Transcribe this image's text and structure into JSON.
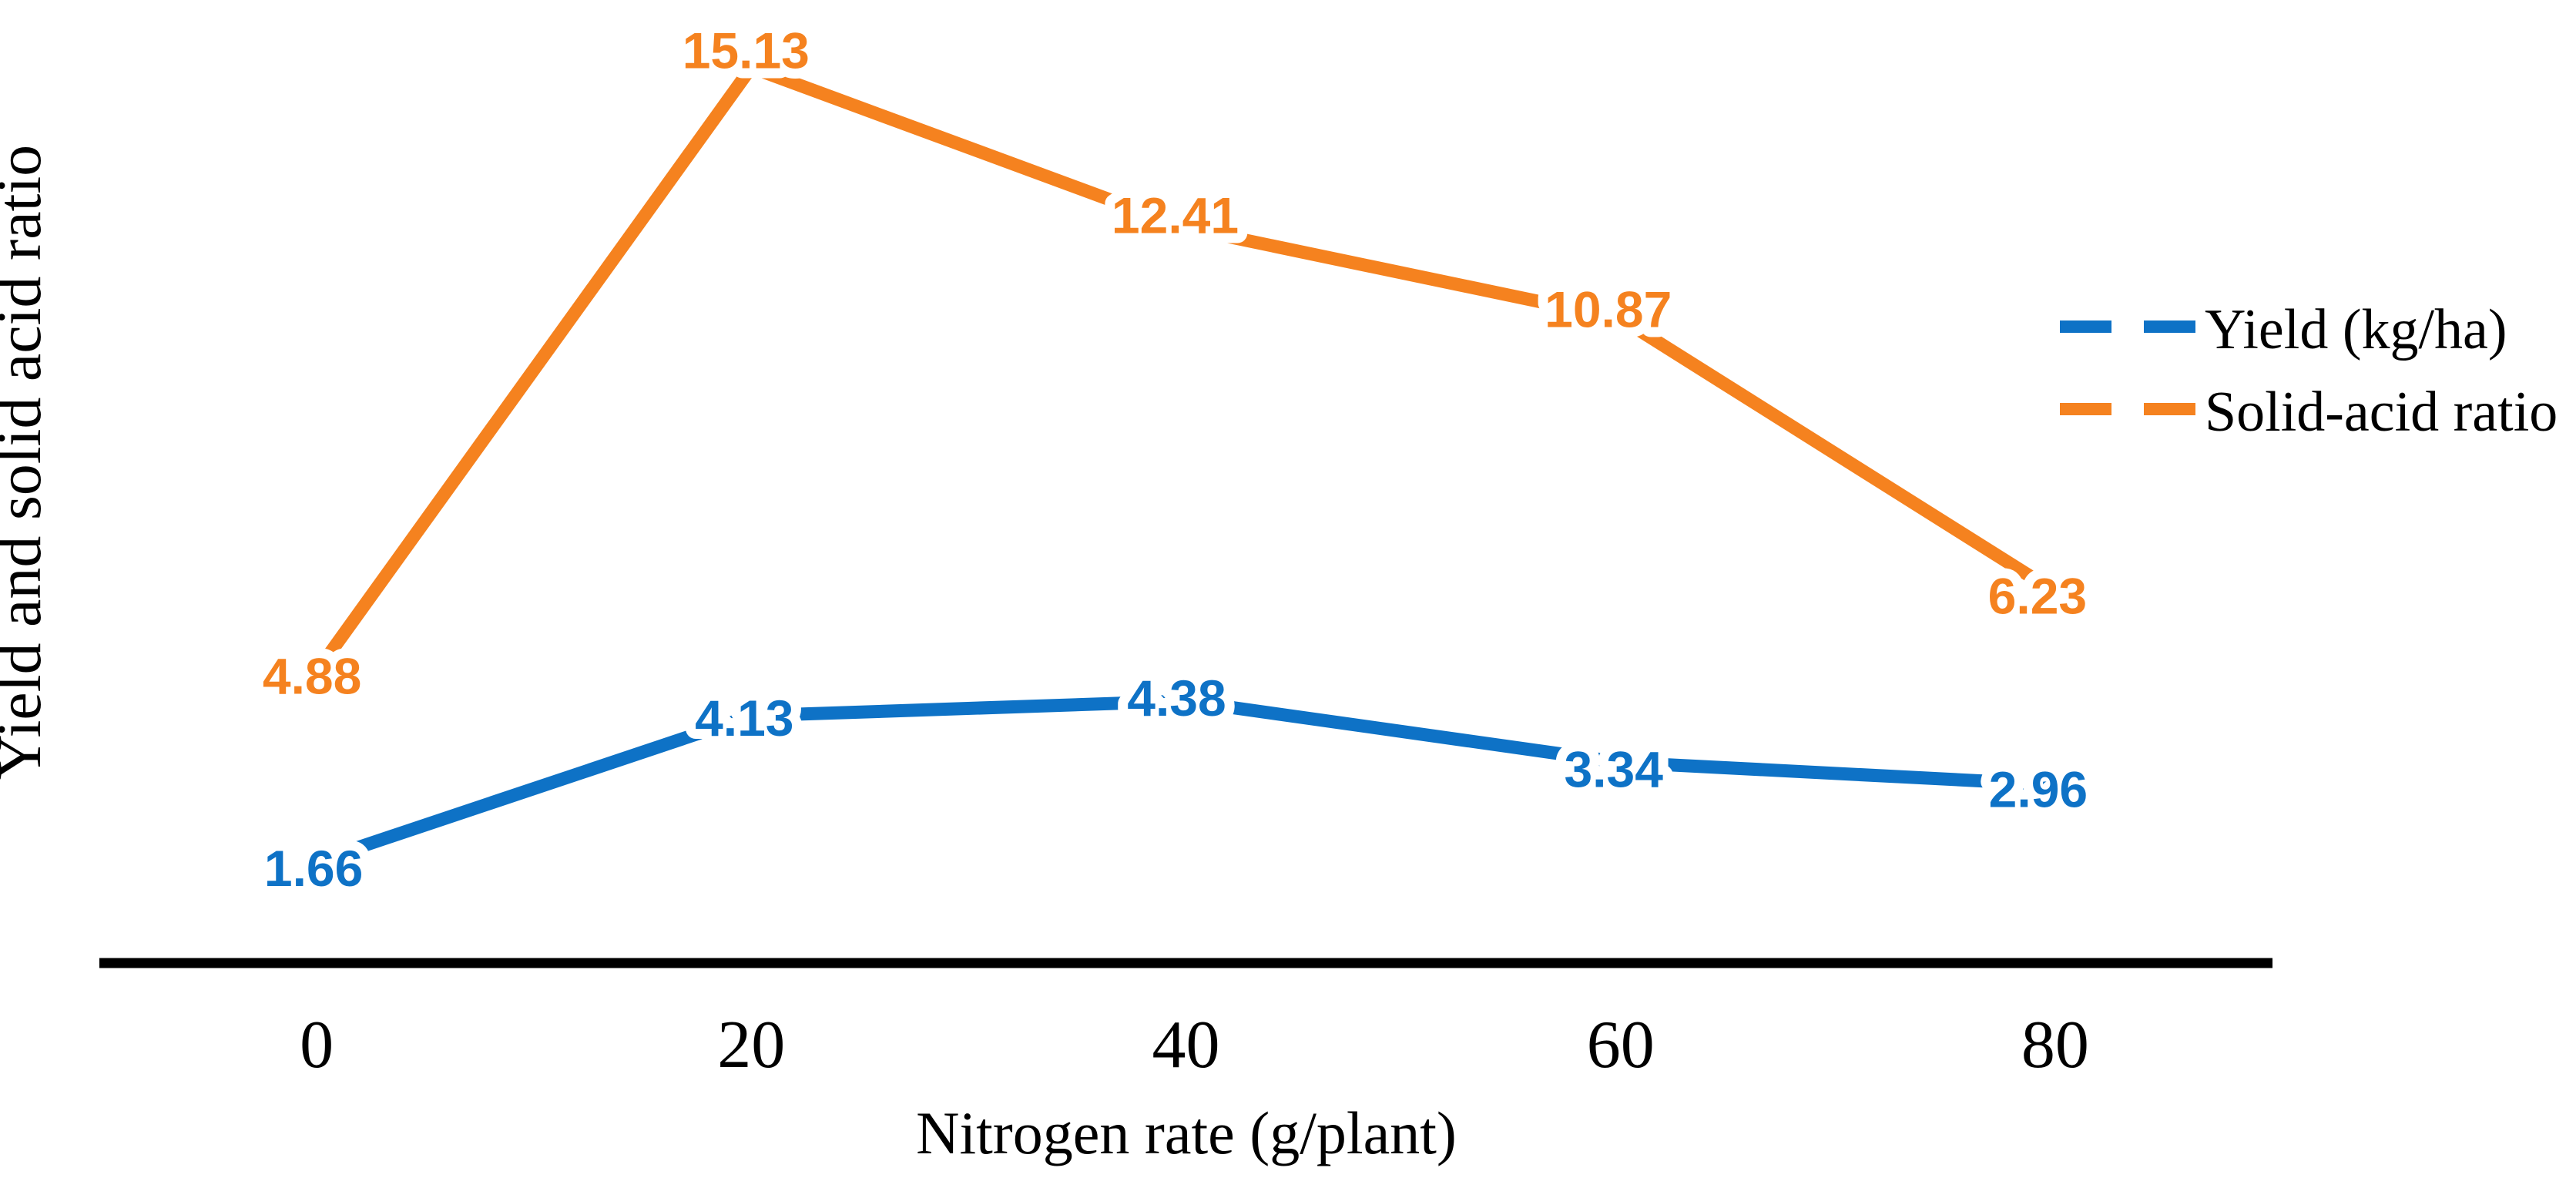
{
  "chart_data": {
    "type": "line",
    "title": "",
    "xlabel": "Nitrogen rate (g/plant)",
    "ylabel": "Yield and solid acid ratio",
    "categories": [
      "0",
      "20",
      "40",
      "60",
      "80"
    ],
    "series": [
      {
        "name": "Yield (kg/ha)",
        "slug": "yield-kg-ha",
        "color": "#0E72C6",
        "values": [
          1.66,
          4.13,
          4.38,
          3.34,
          2.96
        ],
        "data_labels": [
          "1.66",
          "4.13",
          "4.38",
          "3.34",
          "2.96"
        ]
      },
      {
        "name": "Solid-acid ratio",
        "slug": "solid-acid-ratio",
        "color": "#F5821F",
        "values": [
          4.88,
          15.13,
          12.41,
          10.87,
          6.23
        ],
        "data_labels": [
          "4.88",
          "15.13",
          "12.41",
          "10.87",
          "6.23"
        ]
      }
    ],
    "ylim": [
      0,
      16
    ],
    "grid": false,
    "y_axis_line": false,
    "tick_marks": false,
    "data_labels_shown": true,
    "legend_position": "right",
    "legend_key_style": "dashed",
    "axis_color": "#000000",
    "background": "#FFFFFF"
  }
}
